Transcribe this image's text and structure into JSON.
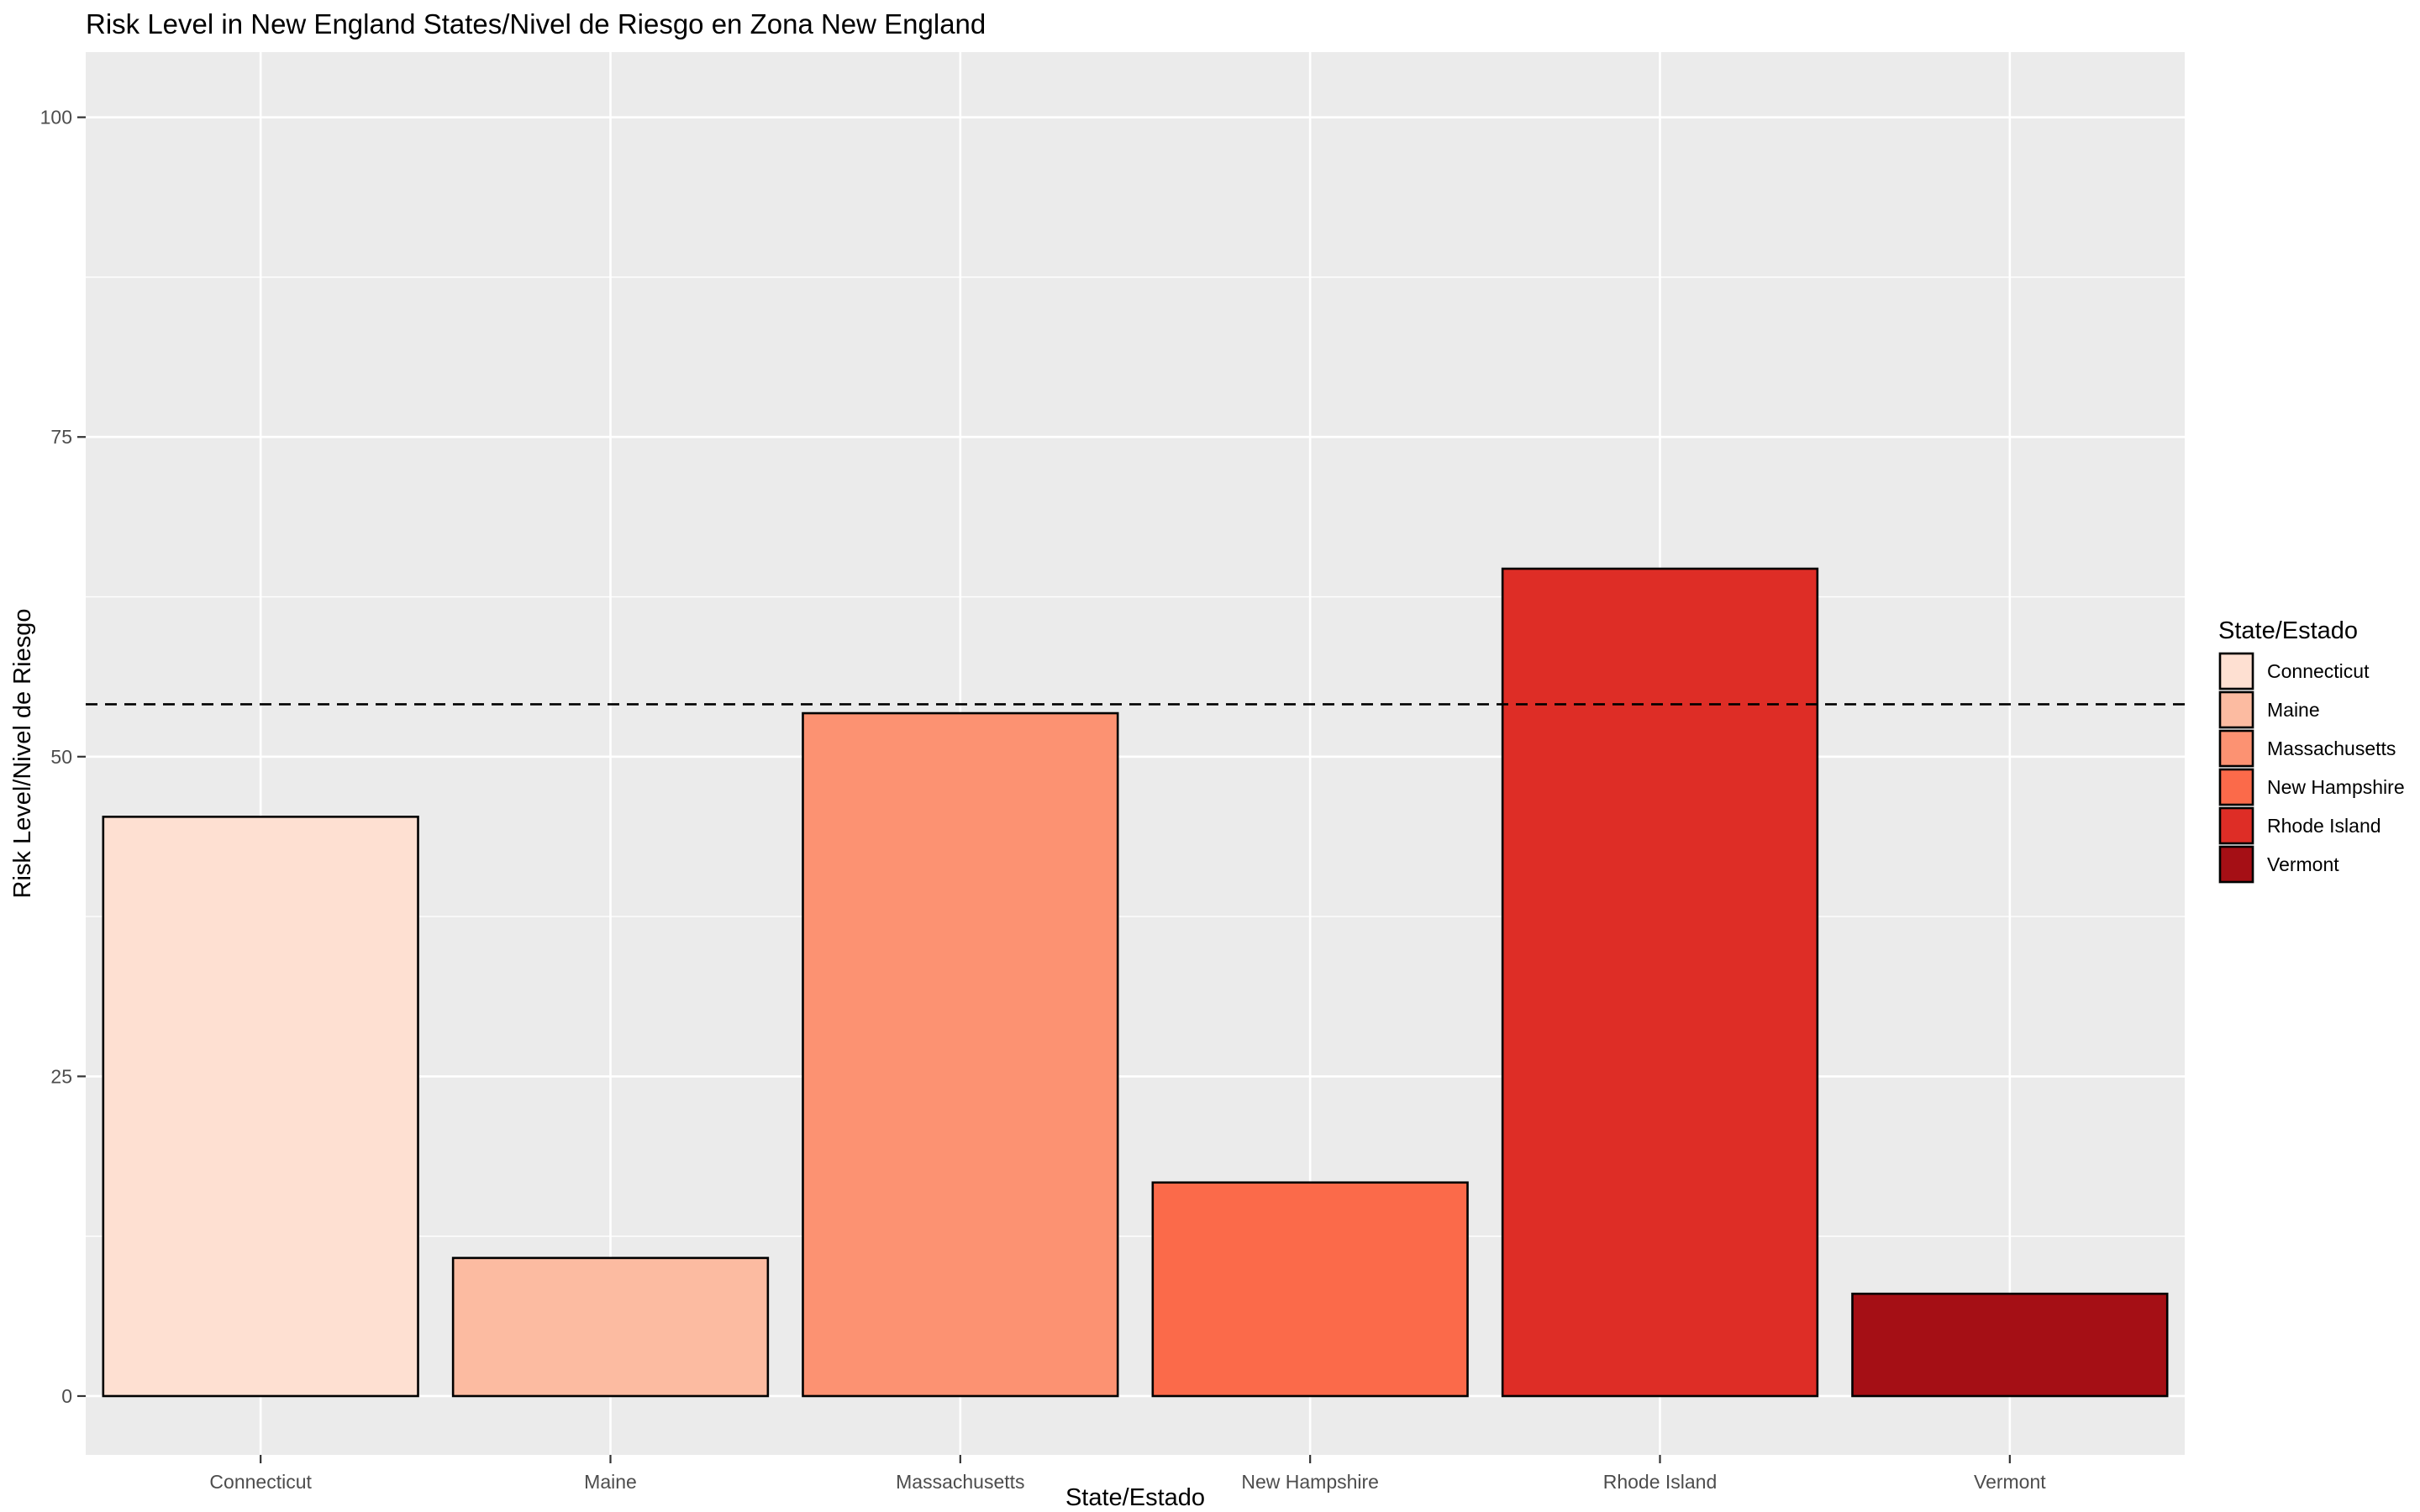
{
  "chart_data": {
    "type": "bar",
    "title": "Risk Level in New England States/Nivel de Riesgo en Zona New England",
    "xlabel": "State/Estado",
    "ylabel": "Risk Level/Nivel de Riesgo",
    "categories": [
      "Connecticut",
      "Maine",
      "Massachusetts",
      "New Hampshire",
      "Rhode Island",
      "Vermont"
    ],
    "values": [
      45.3,
      10.8,
      53.4,
      16.7,
      64.7,
      8.0
    ],
    "colors": [
      "#FEE0D2",
      "#FCBBA1",
      "#FC9272",
      "#FB6A4A",
      "#DE2D26",
      "#A50F15"
    ],
    "reference_line": 54.1,
    "ylim": [
      -4.6,
      105.1
    ],
    "yticks": [
      0,
      25,
      50,
      75,
      100
    ],
    "grid": true,
    "legend": {
      "title": "State/Estado",
      "position": "right",
      "entries": [
        "Connecticut",
        "Maine",
        "Massachusetts",
        "New Hampshire",
        "Rhode Island",
        "Vermont"
      ]
    }
  }
}
